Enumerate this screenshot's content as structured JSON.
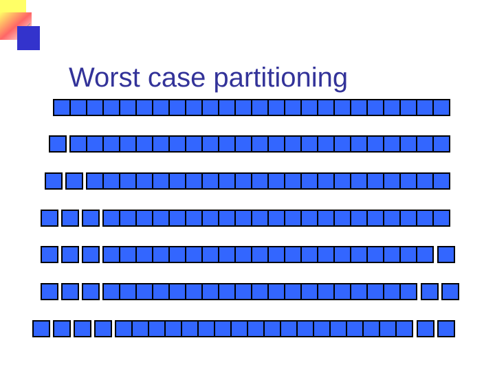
{
  "slide": {
    "title": "Worst case partitioning"
  }
}
